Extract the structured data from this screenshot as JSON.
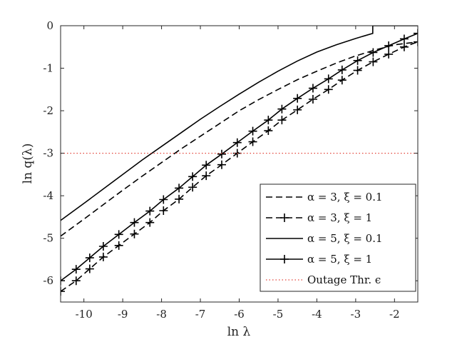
{
  "chart_data": {
    "type": "line",
    "xlabel": "ln λ",
    "ylabel": "ln q(λ)",
    "xlim": [
      -10.6,
      -1.4
    ],
    "ylim": [
      -6.5,
      0
    ],
    "xticks": [
      -10,
      -9,
      -8,
      -7,
      -6,
      -5,
      -4,
      -3,
      -2
    ],
    "yticks": [
      0,
      -1,
      -2,
      -3,
      -4,
      -5,
      -6
    ],
    "grid": false,
    "legend_position": "bottom-right",
    "series": [
      {
        "name": "α = 3, ξ = 0.1",
        "style": "dashed",
        "color": "#000000",
        "x": [
          -10.6,
          -10.0,
          -9.5,
          -9.0,
          -8.5,
          -8.0,
          -7.5,
          -7.0,
          -6.5,
          -6.0,
          -5.5,
          -5.0,
          -4.5,
          -4.0,
          -3.5,
          -3.0,
          -2.5,
          -2.0,
          -1.4
        ],
        "y": [
          -4.95,
          -4.55,
          -4.21,
          -3.87,
          -3.54,
          -3.22,
          -2.9,
          -2.6,
          -2.3,
          -2.0,
          -1.74,
          -1.5,
          -1.27,
          -1.07,
          -0.88,
          -0.71,
          -0.57,
          -0.45,
          -0.38
        ]
      },
      {
        "name": "α = 3, ξ = 1",
        "style": "dashed-plus",
        "color": "#000000",
        "x": [
          -10.6,
          -10.2,
          -9.85,
          -9.5,
          -9.1,
          -8.7,
          -8.3,
          -7.95,
          -7.55,
          -7.2,
          -6.85,
          -6.45,
          -6.05,
          -5.65,
          -5.25,
          -4.9,
          -4.5,
          -4.1,
          -3.7,
          -3.35,
          -2.95,
          -2.55,
          -2.15,
          -1.75,
          -1.4
        ],
        "y": [
          -6.25,
          -6.0,
          -5.72,
          -5.44,
          -5.17,
          -4.9,
          -4.63,
          -4.35,
          -4.08,
          -3.8,
          -3.53,
          -3.27,
          -3.0,
          -2.73,
          -2.47,
          -2.22,
          -1.98,
          -1.73,
          -1.5,
          -1.28,
          -1.05,
          -0.85,
          -0.67,
          -0.5,
          -0.38
        ]
      },
      {
        "name": "α = 5, ξ = 0.1",
        "style": "solid",
        "color": "#000000",
        "x": [
          -10.6,
          -10.0,
          -9.5,
          -9.0,
          -8.5,
          -8.0,
          -7.5,
          -7.0,
          -6.5,
          -6.0,
          -5.5,
          -5.0,
          -4.5,
          -4.0,
          -3.5,
          -3.0,
          -2.56,
          -2.56,
          -1.4
        ],
        "y": [
          -4.58,
          -4.18,
          -3.84,
          -3.5,
          -3.16,
          -2.84,
          -2.52,
          -2.2,
          -1.9,
          -1.61,
          -1.33,
          -1.07,
          -0.83,
          -0.62,
          -0.45,
          -0.3,
          -0.18,
          0.0,
          0.0
        ]
      },
      {
        "name": "α = 5, ξ = 1",
        "style": "solid-plus",
        "color": "#000000",
        "x": [
          -10.6,
          -10.2,
          -9.85,
          -9.5,
          -9.1,
          -8.7,
          -8.3,
          -7.95,
          -7.55,
          -7.2,
          -6.85,
          -6.45,
          -6.05,
          -5.65,
          -5.25,
          -4.9,
          -4.5,
          -4.1,
          -3.7,
          -3.35,
          -2.95,
          -2.55,
          -2.15,
          -1.75,
          -1.4
        ],
        "y": [
          -6.0,
          -5.73,
          -5.46,
          -5.19,
          -4.91,
          -4.63,
          -4.36,
          -4.09,
          -3.82,
          -3.55,
          -3.28,
          -3.02,
          -2.75,
          -2.48,
          -2.22,
          -1.96,
          -1.71,
          -1.47,
          -1.25,
          -1.04,
          -0.82,
          -0.63,
          -0.47,
          -0.31,
          -0.18
        ]
      },
      {
        "name": "Outage Thr. ϵ",
        "style": "dotted",
        "color": "#e3443a",
        "x": [
          -10.6,
          -1.4
        ],
        "y": [
          -3.0,
          -3.0
        ]
      }
    ]
  }
}
